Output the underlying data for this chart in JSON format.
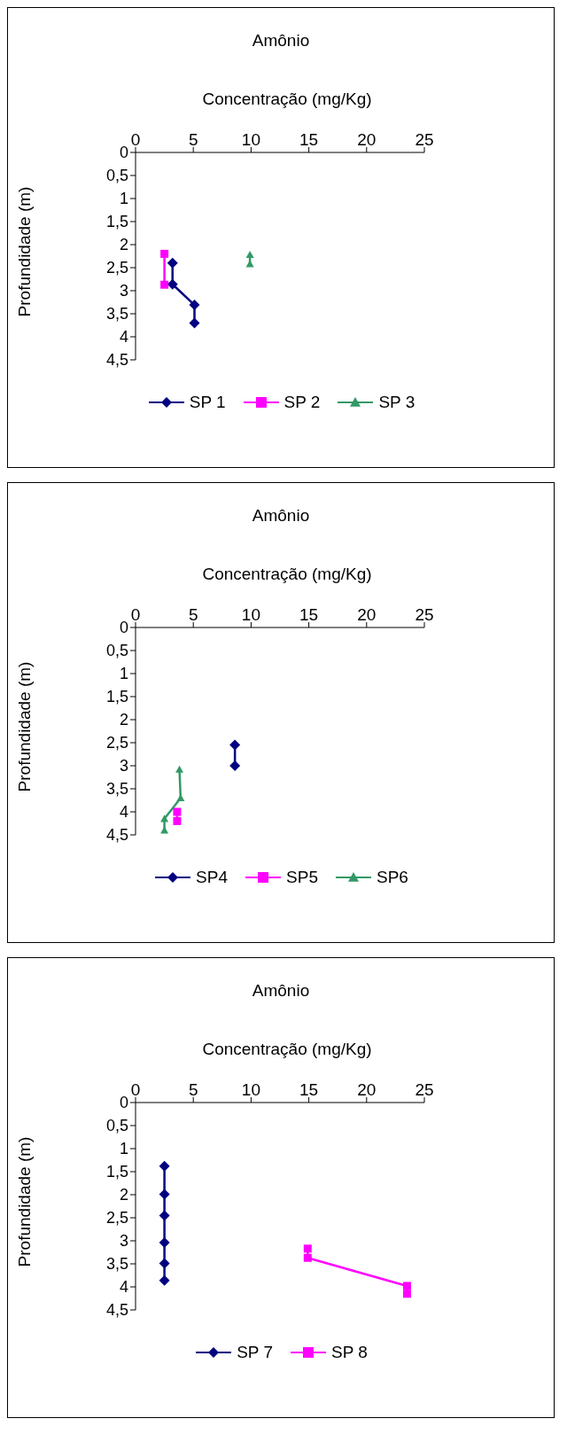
{
  "chart_data": [
    {
      "type": "line",
      "title": "Amônio",
      "xlabel": "Concentração (mg/Kg)",
      "ylabel": "Profundidade (m)",
      "xlim": [
        0,
        25
      ],
      "xticks": [
        0,
        5,
        10,
        15,
        20,
        25
      ],
      "ylim": [
        4.5,
        0
      ],
      "yticks": [
        0,
        {
          "value": 0.5,
          "label": "0,5"
        },
        1,
        {
          "value": 1.5,
          "label": "1,5"
        },
        2,
        {
          "value": 2.5,
          "label": "2,5"
        },
        3,
        {
          "value": 3.5,
          "label": "3,5"
        },
        4,
        {
          "value": 4.5,
          "label": "4,5"
        }
      ],
      "grid": false,
      "legend": "bottom",
      "line_style": "solid",
      "series": [
        {
          "name": "SP 1",
          "color": "#000080",
          "marker": "diamond",
          "x": [
            3.2,
            3.2,
            5.1,
            5.1
          ],
          "values": [
            2.4,
            2.86,
            3.31,
            3.7
          ]
        },
        {
          "name": "SP 2",
          "color": "#ff00ff",
          "marker": "square",
          "x": [
            2.5,
            2.5
          ],
          "values": [
            2.2,
            2.87
          ]
        },
        {
          "name": "SP 3",
          "color": "#339966",
          "marker": "triangle",
          "x": [
            9.9,
            9.9
          ],
          "values": [
            2.22,
            2.42
          ]
        }
      ]
    },
    {
      "type": "line",
      "title": "Amônio",
      "xlabel": "Concentração (mg/Kg)",
      "ylabel": "Profundidade (m)",
      "xlim": [
        0,
        25
      ],
      "xticks": [
        0,
        5,
        10,
        15,
        20,
        25
      ],
      "ylim": [
        4.5,
        0
      ],
      "yticks": [
        0,
        {
          "value": 0.5,
          "label": "0,5"
        },
        1,
        {
          "value": 1.5,
          "label": "1,5"
        },
        2,
        {
          "value": 2.5,
          "label": "2,5"
        },
        3,
        {
          "value": 3.5,
          "label": "3,5"
        },
        4,
        {
          "value": 4.5,
          "label": "4,5"
        }
      ],
      "grid": false,
      "legend": "bottom",
      "line_style": "solid",
      "series": [
        {
          "name": "SP4",
          "color": "#000080",
          "marker": "diamond",
          "x": [
            8.6,
            8.6
          ],
          "values": [
            2.55,
            3.0
          ]
        },
        {
          "name": "SP5",
          "color": "#ff00ff",
          "marker": "square",
          "x": [
            3.6,
            3.6
          ],
          "values": [
            4.0,
            4.2
          ]
        },
        {
          "name": "SP6",
          "color": "#339966",
          "marker": "triangle",
          "x": [
            3.8,
            3.9,
            2.5,
            2.5
          ],
          "values": [
            3.08,
            3.7,
            4.15,
            4.4
          ]
        }
      ]
    },
    {
      "type": "line",
      "title": "Amônio",
      "xlabel": "Concentração (mg/Kg)",
      "ylabel": "Profundidade (m)",
      "xlim": [
        0,
        25
      ],
      "xticks": [
        0,
        5,
        10,
        15,
        20,
        25
      ],
      "ylim": [
        4.5,
        0
      ],
      "yticks": [
        0,
        {
          "value": 0.5,
          "label": "0,5"
        },
        1,
        {
          "value": 1.5,
          "label": "1,5"
        },
        2,
        {
          "value": 2.5,
          "label": "2,5"
        },
        3,
        {
          "value": 3.5,
          "label": "3,5"
        },
        4,
        {
          "value": 4.5,
          "label": "4,5"
        }
      ],
      "grid": false,
      "legend": "bottom",
      "line_style": "solid",
      "series": [
        {
          "name": "SP 7",
          "color": "#000080",
          "marker": "diamond",
          "x": [
            2.5,
            2.5,
            2.5,
            2.5,
            2.5,
            2.5
          ],
          "values": [
            1.38,
            1.99,
            2.45,
            3.04,
            3.49,
            3.86
          ]
        },
        {
          "name": "SP 8",
          "color": "#ff00ff",
          "marker": "square",
          "x": [
            14.9,
            14.9,
            23.5,
            23.5
          ],
          "values": [
            3.17,
            3.37,
            3.98,
            4.15
          ]
        }
      ]
    }
  ]
}
